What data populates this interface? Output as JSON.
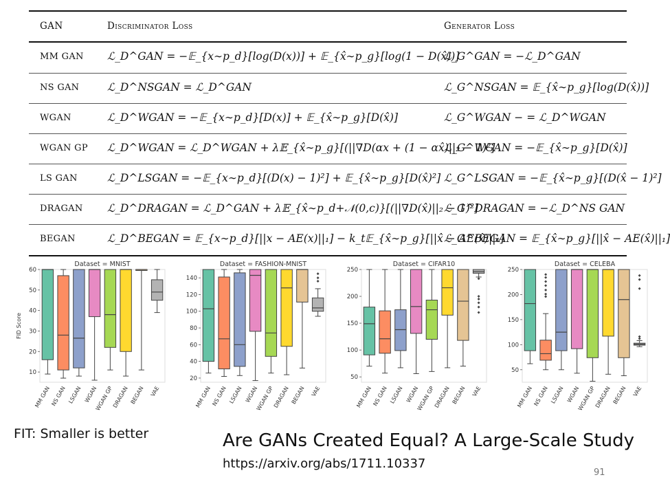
{
  "table": {
    "headers": {
      "gan": "GAN",
      "disc": "Discriminator Loss",
      "gen": "Generator Loss"
    },
    "rows": [
      {
        "gan": "MM GAN",
        "disc": "ℒ_D^GAN = −𝔼_{x∼p_d}[log(D(x))] + 𝔼_{x̂∼p_g}[log(1 − D(x̂))]",
        "gen": "ℒ_G^GAN = −ℒ_D^GAN"
      },
      {
        "gan": "NS GAN",
        "disc": "ℒ_D^NSGAN = ℒ_D^GAN",
        "gen": "ℒ_G^NSGAN = 𝔼_{x̂∼p_g}[log(D(x̂))]"
      },
      {
        "gan": "WGAN",
        "disc": "ℒ_D^WGAN = −𝔼_{x∼p_d}[D(x)] + 𝔼_{x̂∼p_g}[D(x̂)]",
        "gen": "ℒ_G^WGAN − = ℒ_D^WGAN"
      },
      {
        "gan": "WGAN GP",
        "disc": "ℒ_D^WGAN = ℒ_D^WGAN + λ𝔼_{x̂∼p_g}[(||∇D(αx + (1 − αx̂)||₂ − 1)²]",
        "gen": "ℒ_G^WGAN = −𝔼_{x̂∼p_g}[D(x̂)]"
      },
      {
        "gan": "LS GAN",
        "disc": "ℒ_D^LSGAN = −𝔼_{x∼p_d}[(D(x) − 1)²] + 𝔼_{x̂∼p_g}[D(x̂)²]",
        "gen": "ℒ_G^LSGAN = −𝔼_{x̂∼p_g}[(D(x̂ − 1)²]"
      },
      {
        "gan": "DRAGAN",
        "disc": "ℒ_D^DRAGAN = ℒ_D^GAN + λ𝔼_{x̂∼p_d+𝒩(0,c)}[(||∇D(x̂)||₂ − 1)²]",
        "gen": "ℒ_G^DRAGAN = −ℒ_D^NS GAN"
      },
      {
        "gan": "BEGAN",
        "disc": "ℒ_D^BEGAN = 𝔼_{x∼p_d}[||x − AE(x)||₁] − k_t𝔼_{x̂∼p_g}[||x̂ − AE(x̂)||₁]",
        "gen": "ℒ_G^BEGAN = 𝔼_{x̂∼p_g}[||x̂ − AE(x̂)||₁]"
      }
    ]
  },
  "colors": [
    "#66c2a5",
    "#fc8d62",
    "#8da0cb",
    "#e78ac3",
    "#a6d854",
    "#ffd92f",
    "#e5c494",
    "#b3b3b3"
  ],
  "chart_data": [
    {
      "type": "box",
      "title": "Dataset = MNIST",
      "ylabel": "FID Score",
      "ylim": [
        5,
        60
      ],
      "yticks": [
        10,
        20,
        30,
        40,
        50,
        60
      ],
      "categories": [
        "MM GAN",
        "NS GAN",
        "LSGAN",
        "WGAN",
        "WGAN GP",
        "DRAGAN",
        "BEGAN",
        "VAE"
      ],
      "boxes": [
        {
          "whislo": 9,
          "q1": 16,
          "med": 60,
          "q3": 60,
          "whishi": 60,
          "fliers": []
        },
        {
          "whislo": 7,
          "q1": 11,
          "med": 28,
          "q3": 57,
          "whishi": 60,
          "fliers": []
        },
        {
          "whislo": 8,
          "q1": 12,
          "med": 26.5,
          "q3": 60,
          "whishi": 60,
          "fliers": []
        },
        {
          "whislo": 6,
          "q1": 37,
          "med": 60,
          "q3": 60,
          "whishi": 60,
          "fliers": []
        },
        {
          "whislo": 11,
          "q1": 22,
          "med": 38,
          "q3": 60,
          "whishi": 60,
          "fliers": []
        },
        {
          "whislo": 8,
          "q1": 20,
          "med": 60,
          "q3": 60,
          "whishi": 60,
          "fliers": []
        },
        {
          "whislo": 11,
          "q1": 60,
          "med": 60,
          "q3": 60,
          "whishi": 60,
          "fliers": []
        },
        {
          "whislo": 39,
          "q1": 45,
          "med": 49,
          "q3": 55,
          "whishi": 60,
          "fliers": []
        }
      ]
    },
    {
      "type": "box",
      "title": "Dataset = FASHION-MNIST",
      "ylabel": "",
      "ylim": [
        15,
        150
      ],
      "yticks": [
        20,
        40,
        60,
        80,
        100,
        120,
        140
      ],
      "categories": [
        "MM GAN",
        "NS GAN",
        "LSGAN",
        "WGAN",
        "WGAN GP",
        "DRAGAN",
        "BEGAN",
        "VAE"
      ],
      "boxes": [
        {
          "whislo": 26,
          "q1": 40,
          "med": 103,
          "q3": 150,
          "whishi": 150,
          "fliers": []
        },
        {
          "whislo": 22,
          "q1": 31,
          "med": 67,
          "q3": 141,
          "whishi": 150,
          "fliers": []
        },
        {
          "whislo": 23,
          "q1": 34,
          "med": 60,
          "q3": 146,
          "whishi": 150,
          "fliers": []
        },
        {
          "whislo": 17,
          "q1": 76,
          "med": 143,
          "q3": 150,
          "whishi": 150,
          "fliers": []
        },
        {
          "whislo": 26,
          "q1": 46,
          "med": 74,
          "q3": 150,
          "whishi": 150,
          "fliers": []
        },
        {
          "whislo": 24,
          "q1": 58,
          "med": 128,
          "q3": 150,
          "whishi": 150,
          "fliers": []
        },
        {
          "whislo": 32,
          "q1": 111,
          "med": 150,
          "q3": 150,
          "whishi": 150,
          "fliers": []
        },
        {
          "whislo": 94,
          "q1": 100,
          "med": 104,
          "q3": 116,
          "whishi": 127,
          "fliers": [
            136,
            140,
            145
          ]
        }
      ]
    },
    {
      "type": "box",
      "title": "Dataset = CIFAR10",
      "ylabel": "",
      "ylim": [
        40,
        250
      ],
      "yticks": [
        50,
        100,
        150,
        200,
        250
      ],
      "categories": [
        "MM GAN",
        "NS GAN",
        "LSGAN",
        "WGAN",
        "WGAN GP",
        "DRAGAN",
        "BEGAN",
        "VAE"
      ],
      "boxes": [
        {
          "whislo": 70,
          "q1": 91,
          "med": 149,
          "q3": 180,
          "whishi": 250,
          "fliers": []
        },
        {
          "whislo": 57,
          "q1": 94,
          "med": 121,
          "q3": 173,
          "whishi": 250,
          "fliers": []
        },
        {
          "whislo": 67,
          "q1": 99,
          "med": 138,
          "q3": 175,
          "whishi": 250,
          "fliers": []
        },
        {
          "whislo": 56,
          "q1": 131,
          "med": 181,
          "q3": 250,
          "whishi": 250,
          "fliers": []
        },
        {
          "whislo": 60,
          "q1": 120,
          "med": 175,
          "q3": 193,
          "whishi": 250,
          "fliers": []
        },
        {
          "whislo": 67,
          "q1": 165,
          "med": 216,
          "q3": 250,
          "whishi": 250,
          "fliers": []
        },
        {
          "whislo": 70,
          "q1": 118,
          "med": 191,
          "q3": 250,
          "whishi": 250,
          "fliers": []
        },
        {
          "whislo": 236,
          "q1": 243,
          "med": 246,
          "q3": 250,
          "whishi": 250,
          "fliers": [
            170,
            180,
            188,
            195,
            200,
            233
          ]
        }
      ]
    },
    {
      "type": "box",
      "title": "Dataset = CELEBA",
      "ylabel": "",
      "ylim": [
        25,
        250
      ],
      "yticks": [
        50,
        100,
        150,
        200,
        250
      ],
      "categories": [
        "MM GAN",
        "NS GAN",
        "LSGAN",
        "WGAN",
        "WGAN GP",
        "DRAGAN",
        "BEGAN",
        "VAE"
      ],
      "boxes": [
        {
          "whislo": 62,
          "q1": 88,
          "med": 182,
          "q3": 250,
          "whishi": 250,
          "fliers": []
        },
        {
          "whislo": 50,
          "q1": 69,
          "med": 82,
          "q3": 109,
          "whishi": 162,
          "fliers": [
            196,
            201,
            209,
            218,
            226,
            234,
            240
          ]
        },
        {
          "whislo": 50,
          "q1": 88,
          "med": 125,
          "q3": 250,
          "whishi": 250,
          "fliers": []
        },
        {
          "whislo": 43,
          "q1": 92,
          "med": 250,
          "q3": 250,
          "whishi": 250,
          "fliers": []
        },
        {
          "whislo": 27,
          "q1": 74,
          "med": 250,
          "q3": 250,
          "whishi": 250,
          "fliers": []
        },
        {
          "whislo": 41,
          "q1": 117,
          "med": 250,
          "q3": 250,
          "whishi": 250,
          "fliers": []
        },
        {
          "whislo": 38,
          "q1": 74,
          "med": 190,
          "q3": 250,
          "whishi": 250,
          "fliers": []
        },
        {
          "whislo": 96,
          "q1": 99,
          "med": 101,
          "q3": 103,
          "whishi": 108,
          "fliers": [
            112,
            116,
            212,
            230,
            238
          ]
        }
      ]
    }
  ],
  "footer": {
    "note": "FIT: Smaller is better",
    "title": "Are GANs Created Equal? A Large-Scale Study",
    "url": "https://arxiv.org/abs/1711.10337",
    "page_number": "91"
  }
}
